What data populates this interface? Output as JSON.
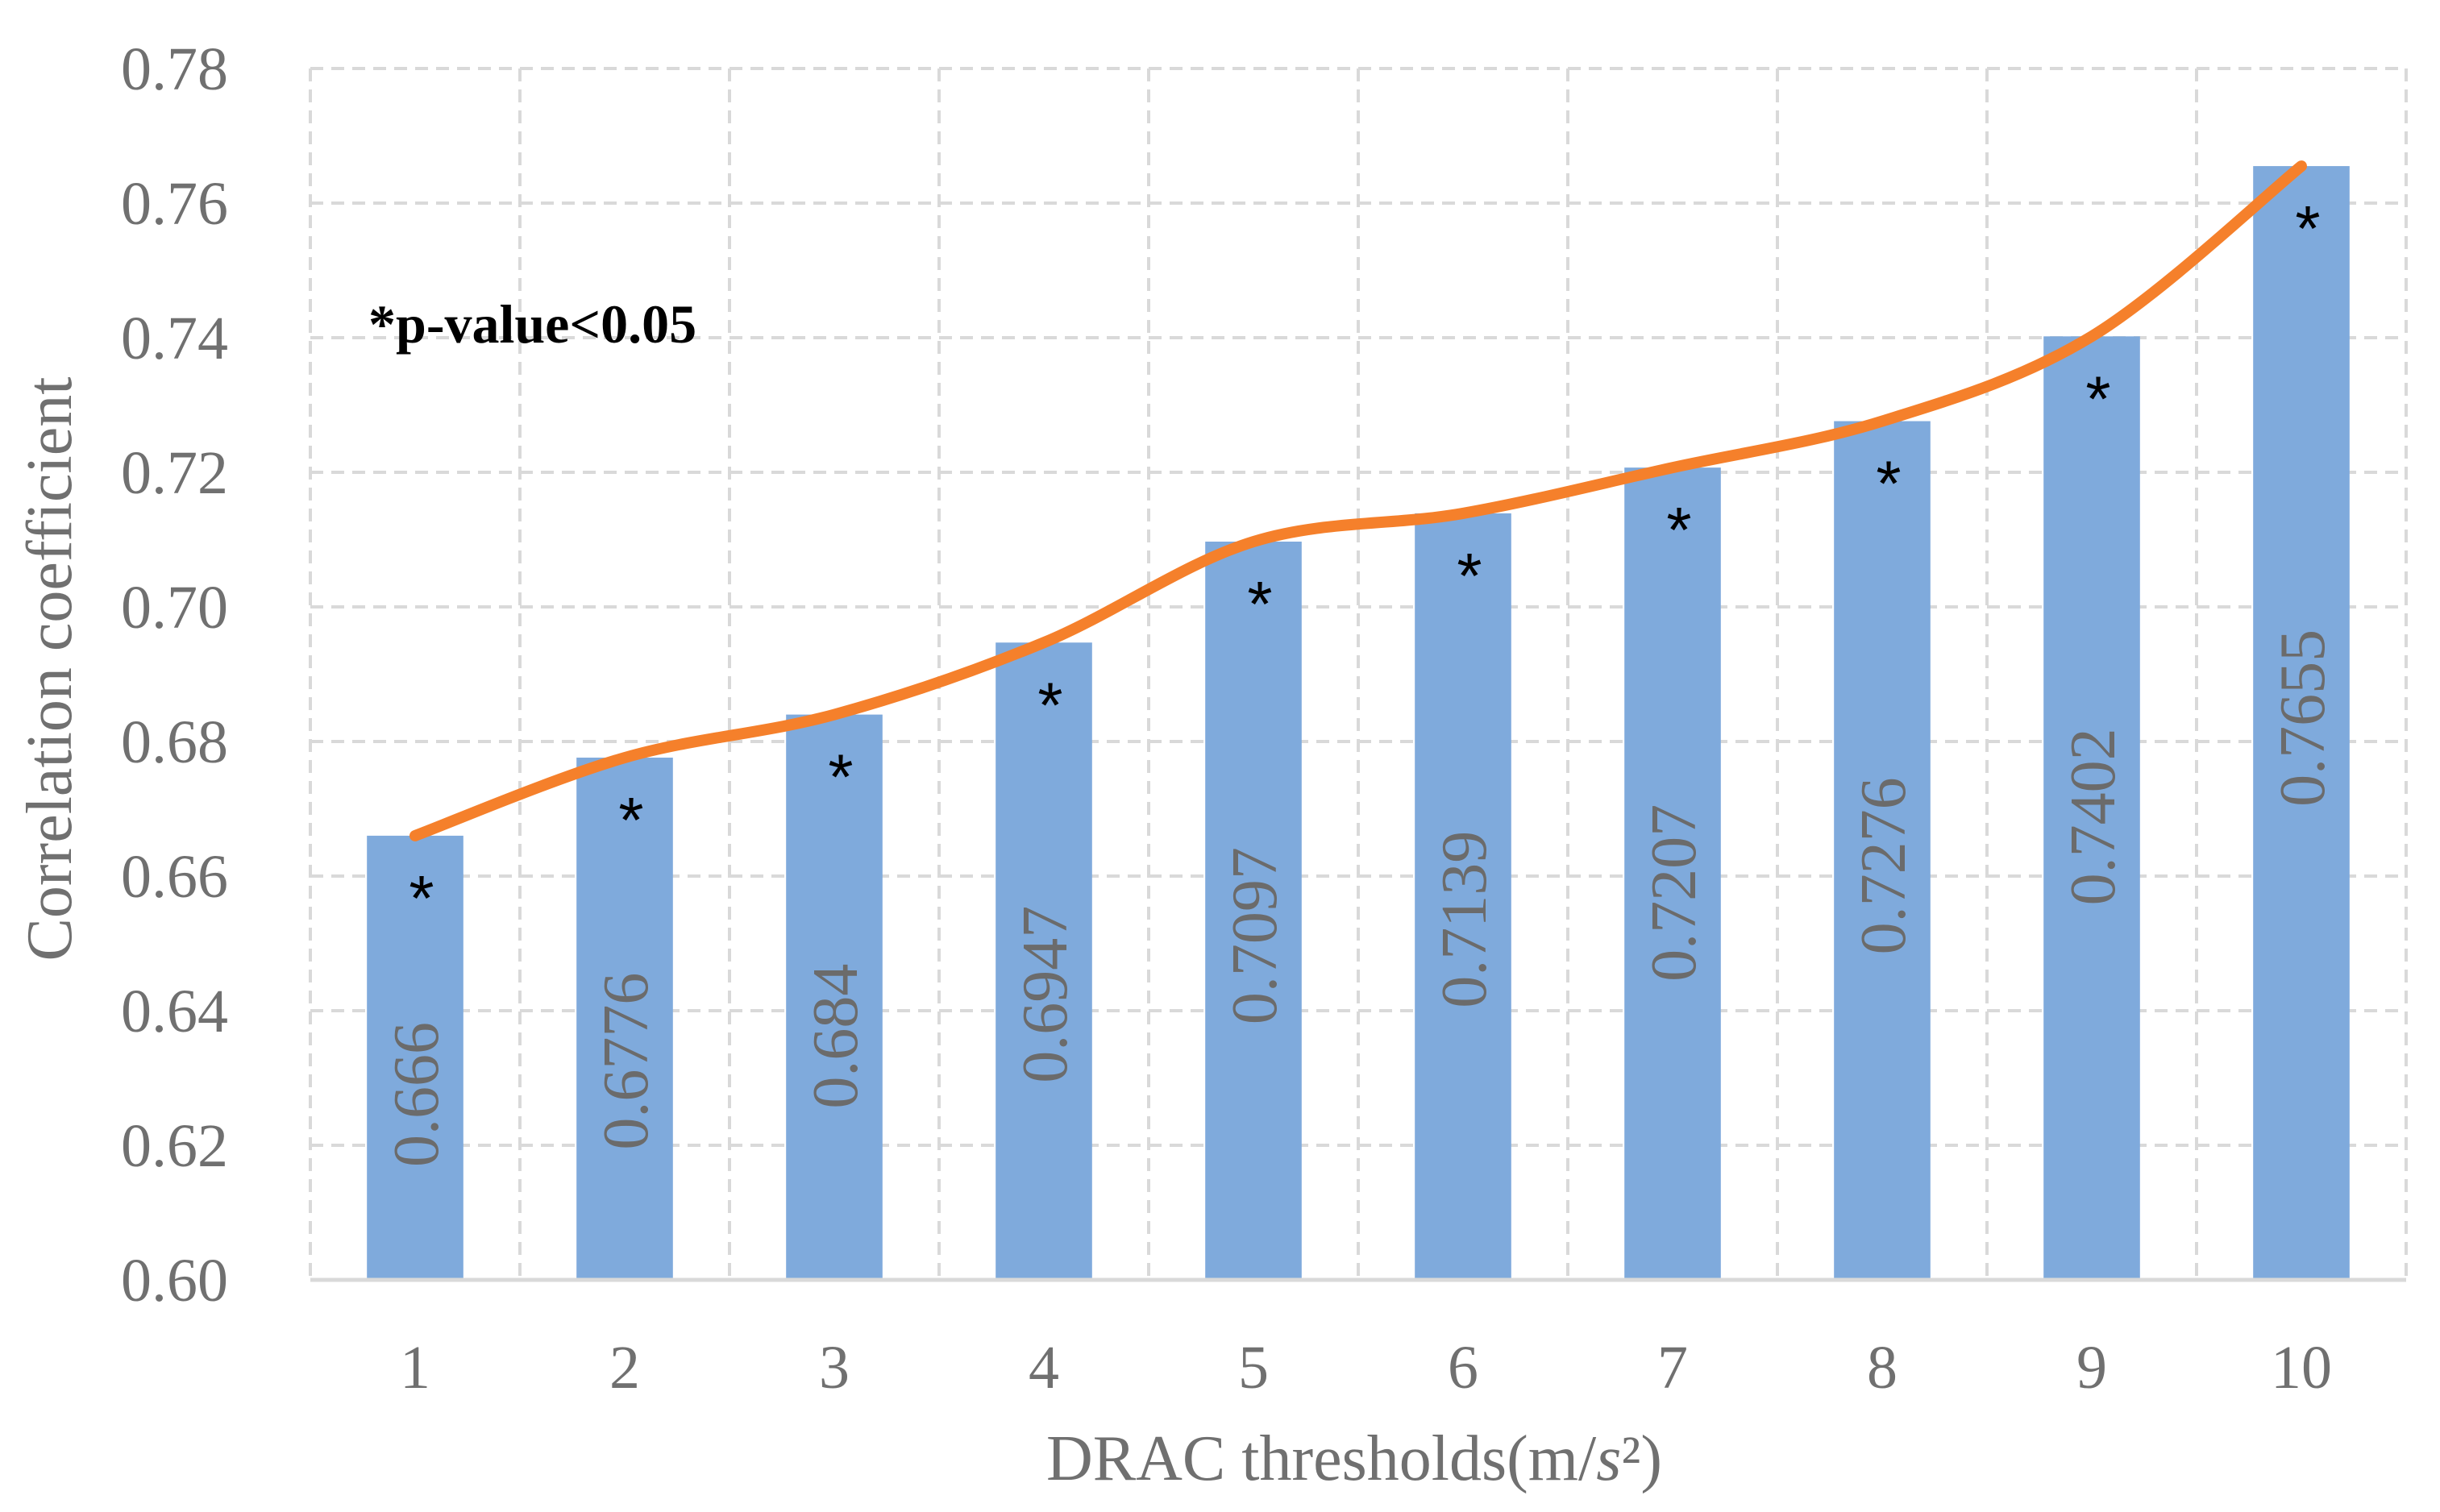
{
  "chart_data": {
    "type": "bar",
    "categories": [
      "1",
      "2",
      "3",
      "4",
      "5",
      "6",
      "7",
      "8",
      "9",
      "10"
    ],
    "values": [
      0.666,
      0.6776,
      0.684,
      0.6947,
      0.7097,
      0.7139,
      0.7207,
      0.7276,
      0.7402,
      0.7655
    ],
    "data_labels": [
      "0.666",
      "0.6776",
      "0.684",
      "0.6947",
      "0.7097",
      "0.7139",
      "0.7207",
      "0.7276",
      "0.7402",
      "0.7655"
    ],
    "significance_marks": [
      "*",
      "*",
      "*",
      "*",
      "*",
      "*",
      "*",
      "*",
      "*",
      "*"
    ],
    "trend_line": {
      "type": "line",
      "smooth": true,
      "values": [
        0.666,
        0.6776,
        0.684,
        0.6947,
        0.7097,
        0.7139,
        0.7207,
        0.7276,
        0.7402,
        0.7655
      ]
    },
    "title": "",
    "xlabel": "DRAC thresholds(m/s²)",
    "xlabel_parts": {
      "prefix": "DRAC thresholds(m/",
      "italic": "s",
      "suffix": "²)"
    },
    "ylabel": "Correlation coefficient",
    "ylim": [
      0.6,
      0.78
    ],
    "yticks": [
      "0.60",
      "0.62",
      "0.64",
      "0.66",
      "0.68",
      "0.70",
      "0.72",
      "0.74",
      "0.76",
      "0.78"
    ],
    "annotation": "*p-value<0.05",
    "grid": true,
    "legend": "none",
    "colors": {
      "bar": "#7faadc",
      "line": "#f5802b",
      "grid": "#d9d9d9",
      "axis": "#d9d9d9",
      "text": "#707070"
    }
  }
}
